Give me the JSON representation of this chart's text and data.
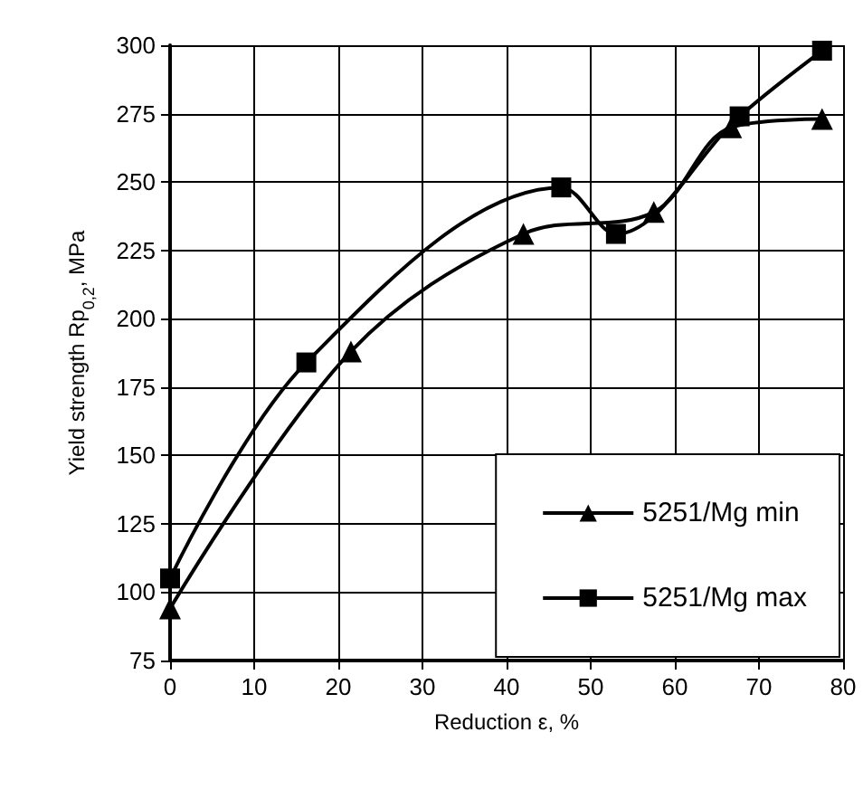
{
  "chart_data": {
    "type": "line",
    "xlabel": "Reduction ε, %",
    "ylabel": "Yield strength Rp$_{0,2}$, MPa",
    "xlim": [
      0,
      80
    ],
    "xticks": [
      0,
      10,
      20,
      30,
      40,
      50,
      60,
      70,
      80
    ],
    "ylim": [
      75,
      300
    ],
    "yticks": [
      75,
      100,
      125,
      150,
      175,
      200,
      225,
      250,
      275,
      300
    ],
    "grid": true,
    "legend": "bottom right",
    "line_style": "solid",
    "series": [
      {
        "name": "5251/Mg min",
        "color": "#000000",
        "marker": "triangle",
        "x": [
          0,
          21.5,
          42,
          57.5,
          66.7,
          77.5
        ],
        "values": [
          94,
          188,
          231,
          239,
          270,
          273
        ]
      },
      {
        "name": "5251/Mg max",
        "color": "#000000",
        "marker": "square",
        "x": [
          0,
          16.2,
          46.5,
          53,
          67.7,
          77.5
        ],
        "values": [
          105,
          184,
          248,
          231,
          274,
          298
        ]
      }
    ]
  }
}
